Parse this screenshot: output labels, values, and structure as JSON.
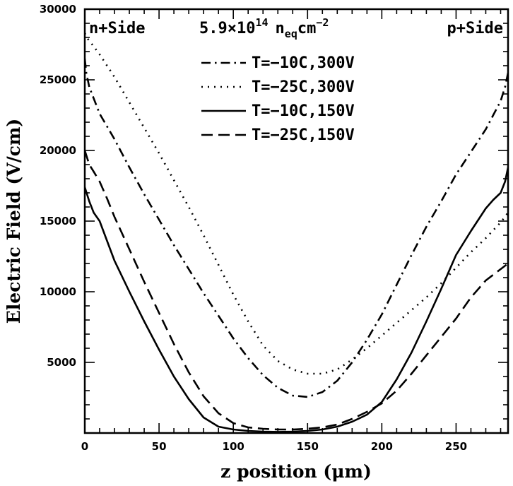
{
  "chart_data": {
    "type": "line",
    "xlabel": "z position (μm)",
    "ylabel": "Electric Field (V/cm)",
    "xlim": [
      0,
      285
    ],
    "ylim": [
      0,
      30000
    ],
    "xticks": [
      0,
      50,
      100,
      150,
      200,
      250
    ],
    "yticks": [
      5000,
      10000,
      15000,
      20000,
      25000,
      30000
    ],
    "grid": false,
    "legend_position": "top-center",
    "annotations": {
      "left": "n+Side",
      "fluence_base": "5.9×10",
      "fluence_exp": "14",
      "fluence_unit_main": "n",
      "fluence_unit_sub": "eq",
      "fluence_unit_rest": "cm",
      "fluence_unit_exp": "−2",
      "right": "p+Side"
    },
    "series": [
      {
        "name": "T=−10C,300V",
        "dash": "dashdot",
        "x": [
          0,
          1,
          3,
          10,
          20,
          30,
          40,
          50,
          60,
          70,
          80,
          90,
          100,
          110,
          120,
          130,
          140,
          150,
          160,
          170,
          180,
          190,
          200,
          210,
          220,
          230,
          240,
          250,
          260,
          270,
          275,
          280,
          283,
          285
        ],
        "y": [
          26500,
          25500,
          24500,
          22600,
          20800,
          18800,
          16900,
          15100,
          13300,
          11600,
          9900,
          8300,
          6700,
          5300,
          4100,
          3200,
          2650,
          2550,
          2900,
          3700,
          5000,
          6600,
          8400,
          10500,
          12600,
          14600,
          16400,
          18300,
          19900,
          21500,
          22500,
          23500,
          24500,
          25500
        ]
      },
      {
        "name": "T=−25C,300V",
        "dash": "dotted",
        "x": [
          0,
          2,
          5,
          10,
          20,
          30,
          40,
          50,
          60,
          70,
          80,
          90,
          100,
          110,
          120,
          130,
          140,
          150,
          160,
          170,
          180,
          190,
          200,
          210,
          220,
          230,
          240,
          250,
          260,
          270,
          280,
          285
        ],
        "y": [
          28300,
          27900,
          27500,
          26800,
          25200,
          23400,
          21600,
          19800,
          17900,
          16000,
          14000,
          11900,
          9800,
          7900,
          6200,
          5100,
          4500,
          4200,
          4200,
          4500,
          5200,
          6000,
          6900,
          7800,
          8700,
          9600,
          10600,
          11700,
          12800,
          13800,
          14900,
          15600
        ]
      },
      {
        "name": "T=−10C,150V",
        "dash": "solid",
        "x": [
          0,
          3,
          6,
          10,
          15,
          20,
          30,
          40,
          50,
          60,
          70,
          80,
          90,
          100,
          110,
          120,
          130,
          140,
          150,
          160,
          170,
          180,
          190,
          200,
          210,
          220,
          230,
          240,
          250,
          260,
          270,
          275,
          280,
          283,
          285
        ],
        "y": [
          17400,
          16400,
          15600,
          15000,
          13600,
          12200,
          10000,
          7900,
          5900,
          4000,
          2400,
          1100,
          450,
          250,
          150,
          100,
          80,
          100,
          150,
          250,
          450,
          800,
          1300,
          2200,
          3800,
          5700,
          7900,
          10200,
          12600,
          14300,
          15900,
          16500,
          17000,
          17800,
          18800
        ]
      },
      {
        "name": "T=−25C,150V",
        "dash": "dashed",
        "x": [
          0,
          3,
          6,
          10,
          15,
          20,
          30,
          40,
          50,
          60,
          70,
          80,
          90,
          100,
          110,
          120,
          130,
          140,
          150,
          160,
          170,
          180,
          190,
          200,
          210,
          220,
          230,
          240,
          250,
          260,
          270,
          280,
          285
        ],
        "y": [
          20000,
          19000,
          18500,
          17800,
          16600,
          15300,
          13000,
          10700,
          8500,
          6300,
          4300,
          2600,
          1400,
          700,
          400,
          300,
          250,
          250,
          300,
          400,
          600,
          1000,
          1500,
          2100,
          3000,
          4200,
          5500,
          6800,
          8100,
          9600,
          10800,
          11600,
          12000
        ]
      }
    ]
  }
}
